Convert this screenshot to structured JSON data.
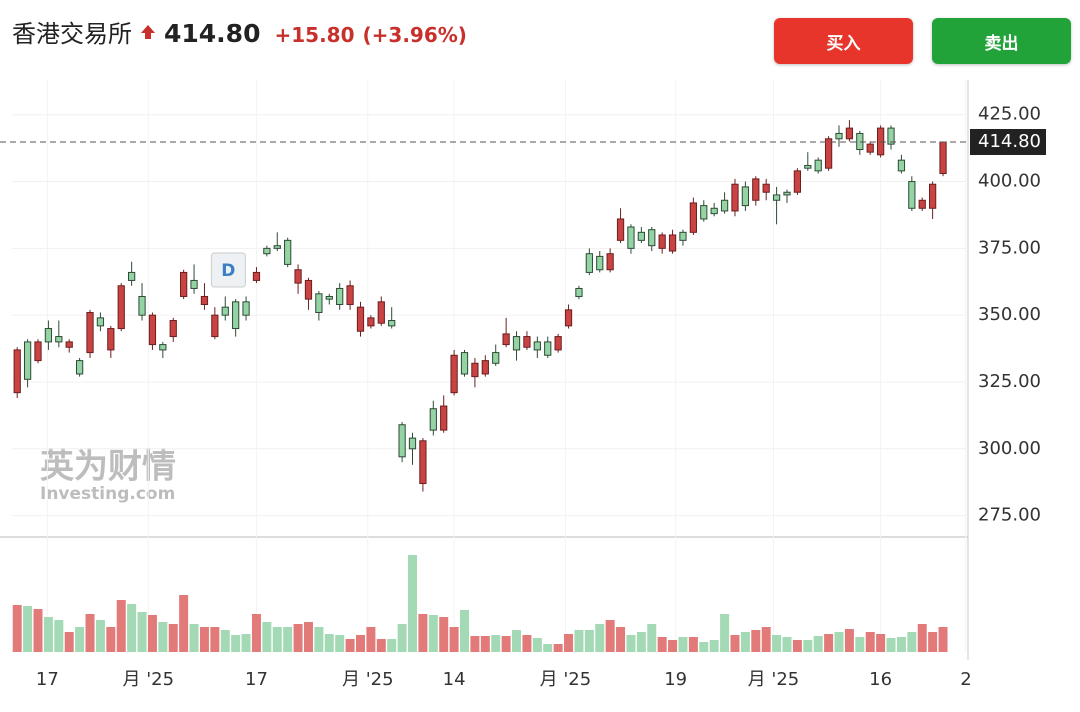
{
  "header": {
    "name": "香港交易所",
    "price": "414.80",
    "change": "+15.80",
    "change_pct": "(+3.96%)"
  },
  "buttons": {
    "buy": "买入",
    "sell": "卖出"
  },
  "watermark": {
    "cn": "英为财情",
    "en": "Investing.com"
  },
  "chart_data": {
    "type": "candlestick",
    "up_color": "#c94343",
    "down_color": "#93d3a4",
    "up_volume_color": "#e27a7a",
    "down_volume_color": "#a3d9b4",
    "ylim": [
      267,
      438
    ],
    "yticks": [
      {
        "value": 275,
        "label": "275.00"
      },
      {
        "value": 300,
        "label": "300.00"
      },
      {
        "value": 325,
        "label": "325.00"
      },
      {
        "value": 350,
        "label": "350.00"
      },
      {
        "value": 375,
        "label": "375.00"
      },
      {
        "value": 400,
        "label": "400.00"
      },
      {
        "value": 425,
        "label": "425.00"
      }
    ],
    "xlim": [
      -0.5,
      91.4
    ],
    "xticks": [
      {
        "value": 2.9,
        "label": "17"
      },
      {
        "value": 12.6,
        "label": "月 '25"
      },
      {
        "value": 23,
        "label": "17"
      },
      {
        "value": 33.7,
        "label": "月 '25"
      },
      {
        "value": 42,
        "label": "14"
      },
      {
        "value": 52.7,
        "label": "月 '25"
      },
      {
        "value": 63.3,
        "label": "19"
      },
      {
        "value": 72.7,
        "label": "月 '25"
      },
      {
        "value": 83,
        "label": "16"
      },
      {
        "value": 91.2,
        "label": "2"
      }
    ],
    "current_price": {
      "value": 414.8,
      "label": "414.80"
    },
    "annotation": {
      "text": "D",
      "x": 20.3
    },
    "vlim": [
      0,
      100
    ],
    "open": [
      321,
      340,
      333,
      345,
      342,
      338,
      333,
      336,
      349,
      337,
      345,
      366,
      357,
      339,
      339,
      342,
      357,
      363,
      354,
      342,
      353,
      355,
      355,
      363,
      375,
      376,
      378,
      362,
      356,
      358,
      357,
      360,
      354,
      344,
      346,
      347,
      348,
      309,
      304,
      287,
      315,
      307,
      321,
      336,
      327,
      328,
      336,
      339,
      342,
      338,
      340,
      340,
      337,
      346,
      360,
      373,
      372,
      367,
      378,
      383,
      381,
      382,
      375,
      374,
      381,
      381,
      391,
      390,
      393,
      389,
      398,
      393,
      396,
      395,
      396,
      396,
      406,
      408,
      405,
      418,
      416,
      418,
      411,
      410,
      420,
      408,
      400,
      390,
      390,
      403
    ],
    "high": [
      338,
      341,
      341,
      348,
      348,
      341,
      334,
      352,
      351,
      346,
      362,
      370,
      362,
      351,
      340,
      349,
      367,
      369,
      362,
      353,
      357,
      356,
      357,
      368,
      376,
      381,
      379,
      369,
      364,
      359,
      358,
      362,
      363,
      355,
      350,
      357,
      353,
      310,
      306,
      304,
      318,
      320,
      337,
      337,
      334,
      335,
      339,
      349,
      344,
      344,
      342,
      342,
      343,
      354,
      361,
      375,
      374,
      375,
      390,
      384,
      383,
      383,
      381,
      382,
      382,
      394,
      393,
      392,
      396,
      401,
      400,
      402,
      401,
      398,
      397,
      405,
      411,
      409,
      417,
      421,
      423,
      419,
      415,
      421,
      421,
      410,
      402,
      394,
      400,
      415
    ],
    "low": [
      319,
      323,
      332,
      337,
      338,
      336,
      327,
      334,
      344,
      334,
      344,
      361,
      348,
      337,
      334,
      340,
      356,
      358,
      352,
      341,
      348,
      342,
      348,
      362,
      372,
      374,
      368,
      358,
      352,
      348,
      354,
      352,
      352,
      342,
      345,
      346,
      345,
      295,
      294,
      284,
      305,
      306,
      320,
      327,
      323,
      327,
      331,
      338,
      333,
      337,
      334,
      334,
      336,
      345,
      356,
      365,
      366,
      366,
      377,
      373,
      377,
      374,
      373,
      373,
      376,
      380,
      385,
      387,
      388,
      387,
      389,
      391,
      393,
      384,
      392,
      395,
      404,
      403,
      404,
      413,
      415,
      410,
      410,
      409,
      412,
      403,
      389,
      389,
      386,
      402
    ],
    "close": [
      337,
      326,
      340,
      340,
      340,
      340,
      328,
      351,
      346,
      345,
      361,
      363,
      350,
      350,
      337,
      348,
      366,
      360,
      357,
      350,
      350,
      345,
      350,
      366,
      373,
      375,
      369,
      367,
      363,
      351,
      356,
      354,
      361,
      353,
      349,
      355,
      346,
      297,
      300,
      303,
      307,
      316,
      335,
      328,
      332,
      333,
      332,
      343,
      337,
      342,
      337,
      335,
      342,
      352,
      357,
      366,
      367,
      373,
      386,
      375,
      378,
      376,
      380,
      380,
      378,
      392,
      386,
      388,
      389,
      399,
      391,
      401,
      399,
      393,
      395,
      404,
      405,
      404,
      416,
      416,
      420,
      412,
      414,
      420,
      414,
      404,
      390,
      393,
      399,
      414.8
    ],
    "volume": [
      47,
      46,
      43,
      35,
      32,
      20,
      25,
      38,
      32,
      25,
      52,
      48,
      40,
      37,
      30,
      28,
      57,
      28,
      25,
      25,
      22,
      17,
      18,
      38,
      30,
      25,
      25,
      28,
      30,
      25,
      18,
      17,
      13,
      17,
      25,
      13,
      13,
      28,
      97,
      38,
      37,
      35,
      25,
      42,
      16,
      16,
      17,
      16,
      22,
      17,
      14,
      8,
      8,
      18,
      22,
      22,
      28,
      32,
      25,
      17,
      20,
      28,
      15,
      12,
      15,
      15,
      10,
      12,
      38,
      17,
      20,
      22,
      25,
      17,
      15,
      12,
      12,
      16,
      18,
      20,
      23,
      15,
      20,
      18,
      14,
      15,
      20,
      28,
      20,
      25
    ]
  }
}
